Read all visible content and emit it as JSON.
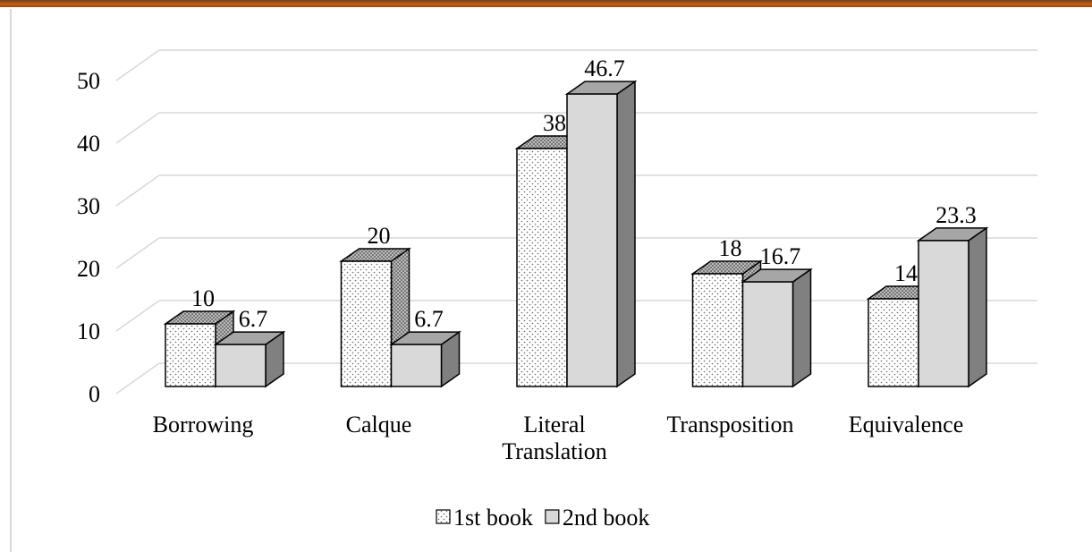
{
  "chart_data": {
    "type": "bar3d",
    "categories": [
      "Borrowing",
      "Calque",
      "Literal Translation",
      "Transposition",
      "Equivalence"
    ],
    "series": [
      {
        "name": "1st book",
        "color": "#ffffff",
        "values": [
          10,
          20,
          38,
          18,
          14
        ]
      },
      {
        "name": "2nd book",
        "color": "#d9d9d9",
        "values": [
          6.7,
          6.7,
          46.7,
          16.7,
          23.3
        ]
      }
    ],
    "ylim": [
      0,
      50
    ],
    "yticks": [
      0,
      10,
      20,
      30,
      40,
      50
    ],
    "grid": true,
    "legend": "bottom"
  }
}
